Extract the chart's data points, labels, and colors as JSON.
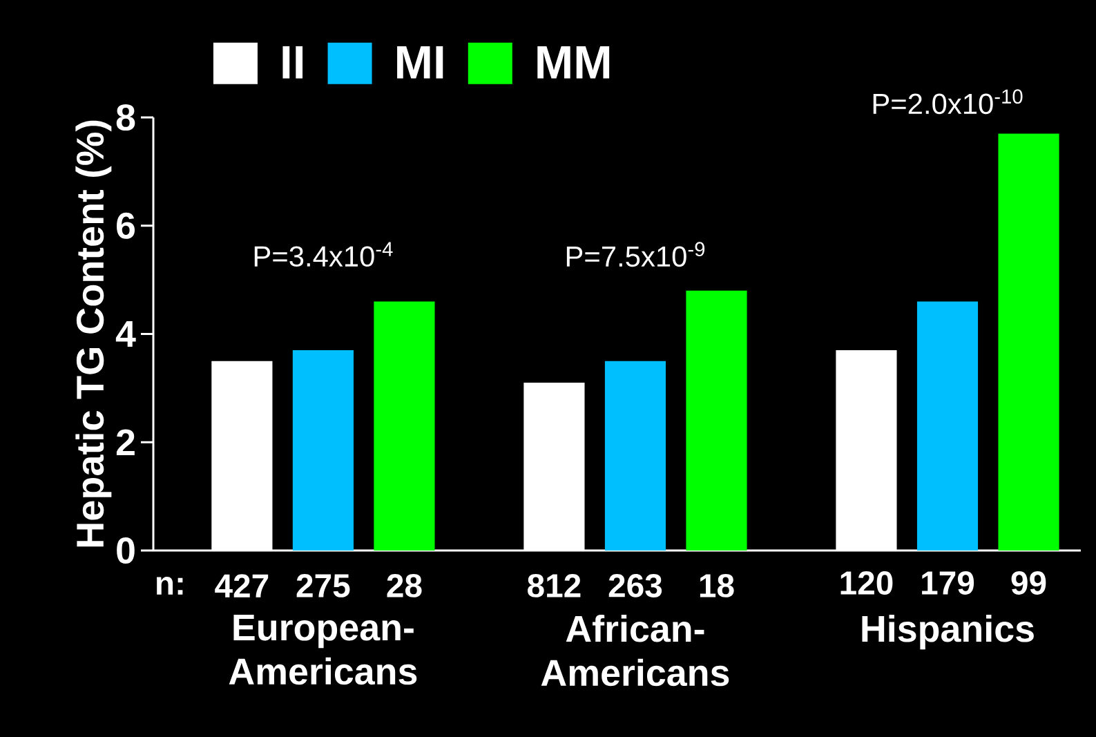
{
  "chart_data": {
    "type": "bar",
    "ylabel": "Hepatic TG Content (%)",
    "categories": [
      "European-Americans",
      "African-Americans",
      "Hispanics"
    ],
    "series": [
      {
        "name": "II",
        "color": "#ffffff",
        "values": [
          3.5,
          3.1,
          3.7
        ]
      },
      {
        "name": "MI",
        "color": "#00bfff",
        "values": [
          3.7,
          3.5,
          4.6
        ]
      },
      {
        "name": "MM",
        "color": "#00ff00",
        "values": [
          4.6,
          4.8,
          7.7
        ]
      }
    ],
    "ylim": [
      0,
      8
    ],
    "yticks": [
      0,
      2,
      4,
      6,
      8
    ],
    "legend": "top left",
    "annotations": [
      "P=3.4x10$^{-4}$",
      "P=7.5x10$^{-9}$",
      "P=2.0x10$^{-10}$",
      "n:",
      "427",
      "275",
      "28",
      "812",
      "263",
      "18",
      "120",
      "179",
      "99"
    ]
  }
}
